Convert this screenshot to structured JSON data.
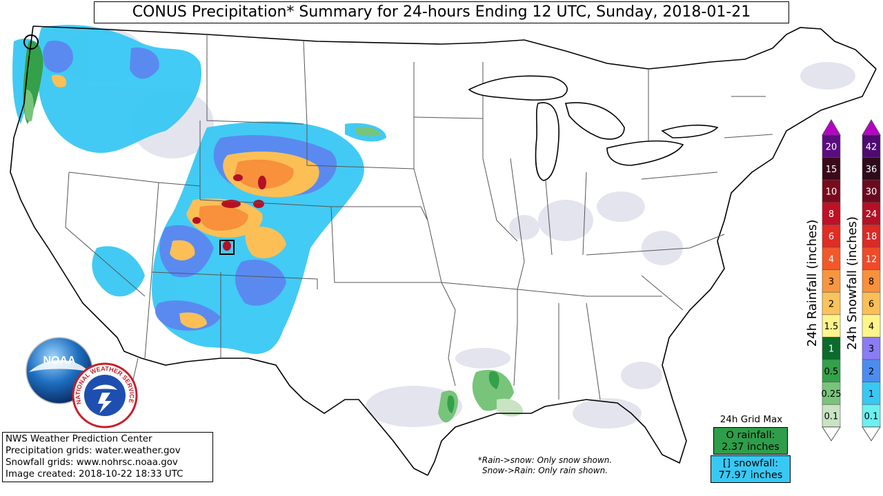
{
  "title": "CONUS Precipitation* Summary for 24-hours Ending 12 UTC, Sunday, 2018-01-21",
  "credits": [
    "NWS Weather Prediction Center",
    "Precipitation grids: water.weather.gov",
    "Snowfall grids: www.nohrsc.noaa.gov",
    "Image created: 2018-10-22 18:33 UTC"
  ],
  "note_lines": [
    "*Rain->snow: Only snow shown.",
    "Snow->Rain: Only rain shown."
  ],
  "grid_max": {
    "label": "24h Grid Max",
    "rain_line1": "O rainfall:",
    "rain_line2": "2.37 inches",
    "snow_line1": "[] snowfall:",
    "snow_line2": "77.97 inches",
    "rain_color": "#2e9e4a",
    "snow_color": "#38c8f4"
  },
  "rain_legend": {
    "title": "24h Rainfall (inches)",
    "levels": [
      "20",
      "15",
      "10",
      "8",
      "6",
      "4",
      "3",
      "2",
      "1.5",
      "1",
      "0.5",
      "0.25",
      "0.1"
    ],
    "colors": [
      "#5b0d80",
      "#3a0a1a",
      "#7a0a1e",
      "#c01026",
      "#e12d24",
      "#f2582a",
      "#f8963f",
      "#fbc35a",
      "#fff48c",
      "#0c6b2c",
      "#34a04a",
      "#78c47a",
      "#c8e4c2"
    ]
  },
  "snow_legend": {
    "title": "24h Snowfall (inches)",
    "levels": [
      "42",
      "36",
      "30",
      "24",
      "18",
      "12",
      "8",
      "6",
      "4",
      "3",
      "2",
      "1",
      "0.1"
    ],
    "colors": [
      "#4e0a70",
      "#2e0a1a",
      "#6a0a20",
      "#b41026",
      "#dc2a26",
      "#f04a28",
      "#f8903c",
      "#fbbf56",
      "#fff48a",
      "#8a7cf4",
      "#4c8cf0",
      "#38c8f4",
      "#6cf0f0"
    ]
  },
  "logos": {
    "noaa_text": "NOAA",
    "nws_text": "NATIONAL WEATHER SERVICE"
  }
}
